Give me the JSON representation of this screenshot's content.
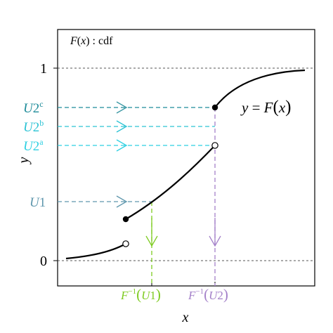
{
  "box_label": {
    "f": "F",
    "lp": "(",
    "x": "x",
    "rp": ")",
    "rest": " : cdf"
  },
  "curve_label": {
    "y": "y",
    "eq": " = ",
    "f": "F",
    "lp": "(",
    "x": "x",
    "rp": ")"
  },
  "y_ticks": {
    "one": "1",
    "zero": "0"
  },
  "axis_labels": {
    "x": "x",
    "y": "y"
  },
  "levels": {
    "u1": {
      "base": "U",
      "num": "1"
    },
    "u2a": {
      "base": "U",
      "num": "2",
      "sup": "a"
    },
    "u2b": {
      "base": "U",
      "num": "2",
      "sup": "b"
    },
    "u2c": {
      "base": "U",
      "num": "2",
      "sup": "c"
    }
  },
  "x_marks": {
    "inv_u1": {
      "f": "F",
      "sup": "−1",
      "lp": "(",
      "u": "U",
      "num": "1",
      "rp": ")"
    },
    "inv_u2": {
      "f": "F",
      "sup": "−1",
      "lp": "(",
      "u": "U",
      "num": "2",
      "rp": ")"
    }
  },
  "colors": {
    "u1": "#5f97ad",
    "u2a": "#2ed0e2",
    "u2b": "#2cc3d4",
    "u2c": "#1f8c9a",
    "arrow_u2c": "#3a97a3",
    "inv_u1": "#7ecb21",
    "inv_u2": "#a481c9",
    "curve": "#000000",
    "guide": "#555555"
  }
}
